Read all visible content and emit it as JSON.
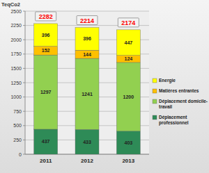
{
  "chart_data": {
    "type": "bar",
    "stacked": true,
    "data_labels": true,
    "grid": true,
    "legend": "right",
    "y_label": "TeqCo2",
    "categories": [
      "2011",
      "2012",
      "2013"
    ],
    "series": [
      {
        "name": "Déplacement professionnel",
        "color": "#2e8b57",
        "values": [
          437,
          433,
          403
        ]
      },
      {
        "name": "Déplacement domicile-travail",
        "color": "#92d050",
        "values": [
          1297,
          1241,
          1200
        ]
      },
      {
        "name": "Matières entrantes",
        "color": "#ffc000",
        "values": [
          152,
          144,
          124
        ]
      },
      {
        "name": "Energie",
        "color": "#ffff00",
        "values": [
          396,
          396,
          447
        ]
      }
    ],
    "totals": [
      2282,
      2214,
      2174
    ],
    "ylim": [
      0,
      2500
    ],
    "yticks": [
      0,
      250,
      500,
      750,
      1000,
      1250,
      1500,
      1750,
      2000,
      2250,
      2500
    ]
  }
}
